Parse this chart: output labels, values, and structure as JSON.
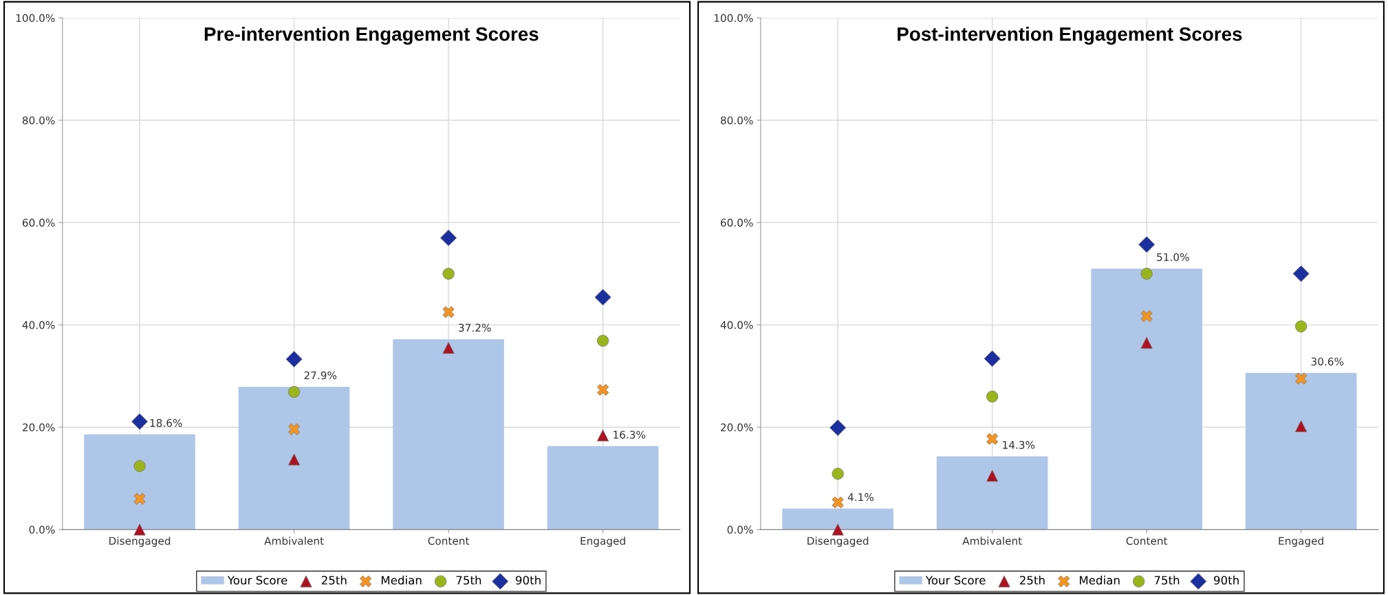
{
  "chart_data": [
    {
      "type": "bar",
      "title": "Pre-intervention Engagement Scores",
      "categories": [
        "Disengaged",
        "Ambivalent",
        "Content",
        "Engaged"
      ],
      "ylim": [
        0,
        100
      ],
      "yticks": [
        {
          "value": 0,
          "label": "0.0%"
        },
        {
          "value": 20,
          "label": "20.0%"
        },
        {
          "value": 40,
          "label": "40.0%"
        },
        {
          "value": 60,
          "label": "60.0%"
        },
        {
          "value": 80,
          "label": "80.0%"
        },
        {
          "value": 100,
          "label": "100.0%"
        }
      ],
      "grid": true,
      "legend": "bottom",
      "series": [
        {
          "name": "Your Score",
          "color": "#aec6e8",
          "values": [
            18.6,
            27.9,
            37.2,
            16.3
          ],
          "value_labels": [
            "18.6%",
            "27.9%",
            "37.2%",
            "16.3%"
          ]
        },
        {
          "name": "25th",
          "type": "scatter",
          "marker": "triangle",
          "color": "#b01020",
          "values": [
            0,
            13.7,
            35.5,
            18.4
          ]
        },
        {
          "name": "Median",
          "type": "scatter",
          "marker": "cross",
          "color": "#f7941d",
          "values": [
            6.0,
            19.6,
            42.5,
            27.3
          ]
        },
        {
          "name": "75th",
          "type": "scatter",
          "marker": "circle",
          "color": "#9ab51a",
          "values": [
            12.4,
            26.9,
            50.0,
            36.9
          ]
        },
        {
          "name": "90th",
          "type": "scatter",
          "marker": "diamond",
          "color": "#1c2fa0",
          "values": [
            21.1,
            33.3,
            57.0,
            45.4
          ]
        }
      ]
    },
    {
      "type": "bar",
      "title": "Post-intervention Engagement Scores",
      "categories": [
        "Disengaged",
        "Ambivalent",
        "Content",
        "Engaged"
      ],
      "ylim": [
        0,
        100
      ],
      "yticks": [
        {
          "value": 0,
          "label": "0.0%"
        },
        {
          "value": 20,
          "label": "20.0%"
        },
        {
          "value": 40,
          "label": "40.0%"
        },
        {
          "value": 60,
          "label": "60.0%"
        },
        {
          "value": 80,
          "label": "80.0%"
        },
        {
          "value": 100,
          "label": "100.0%"
        }
      ],
      "grid": true,
      "legend": "bottom",
      "series": [
        {
          "name": "Your Score",
          "color": "#aec6e8",
          "values": [
            4.1,
            14.3,
            51.0,
            30.6
          ],
          "value_labels": [
            "4.1%",
            "14.3%",
            "51.0%",
            "30.6%"
          ]
        },
        {
          "name": "25th",
          "type": "scatter",
          "marker": "triangle",
          "color": "#b01020",
          "values": [
            0,
            10.5,
            36.5,
            20.2
          ]
        },
        {
          "name": "Median",
          "type": "scatter",
          "marker": "cross",
          "color": "#f7941d",
          "values": [
            5.3,
            17.7,
            41.7,
            29.5
          ]
        },
        {
          "name": "75th",
          "type": "scatter",
          "marker": "circle",
          "color": "#9ab51a",
          "values": [
            10.9,
            26.0,
            50.0,
            39.7
          ]
        },
        {
          "name": "90th",
          "type": "scatter",
          "marker": "diamond",
          "color": "#1c2fa0",
          "values": [
            19.9,
            33.4,
            55.7,
            50.0
          ]
        }
      ]
    }
  ]
}
